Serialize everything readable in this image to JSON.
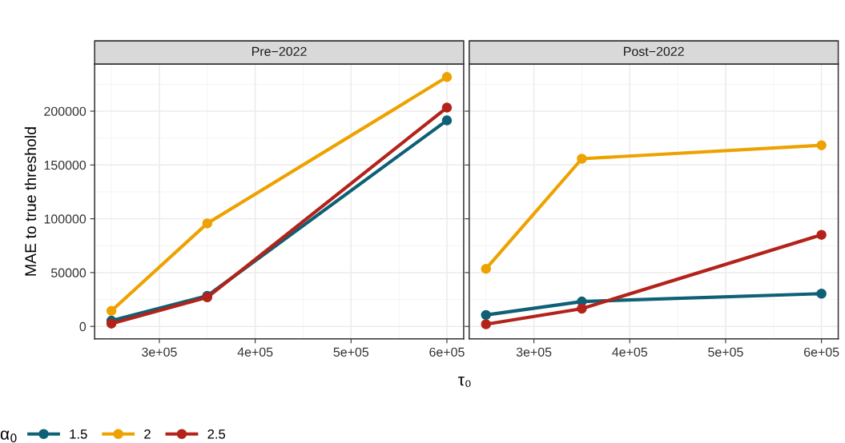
{
  "chart_data": [
    {
      "type": "line",
      "title": "Pre−2022",
      "xlabel": "τ₀",
      "ylabel": "MAE to true threshold",
      "legend_title": "α$_{0}$",
      "legend": "bottom",
      "marker": "circle",
      "line_style": "solid",
      "grid": true,
      "x": [
        250000,
        350000,
        600000
      ],
      "xlim": [
        232500,
        617500
      ],
      "xticks": [
        {
          "value": 300000,
          "label": "3e+05"
        },
        {
          "value": 400000,
          "label": "4e+05"
        },
        {
          "value": 500000,
          "label": "5e+05"
        },
        {
          "value": 600000,
          "label": "6e+05"
        }
      ],
      "ylim": [
        -11600,
        243600
      ],
      "yticks": [
        0,
        50000,
        100000,
        150000,
        200000
      ],
      "series": [
        {
          "name": "1.5",
          "color": "#0e6075",
          "values": [
            5300,
            28400,
            191400
          ]
        },
        {
          "name": "2",
          "color": "#eea200",
          "values": [
            14500,
            95700,
            231700
          ]
        },
        {
          "name": "2.5",
          "color": "#b3231a",
          "values": [
            2600,
            27000,
            203300
          ]
        }
      ]
    },
    {
      "type": "line",
      "title": "Post−2022",
      "marker": "circle",
      "line_style": "solid",
      "grid": true,
      "tick_labels": "x",
      "x": [
        250000,
        350000,
        600000
      ],
      "xlim": [
        232500,
        617500
      ],
      "xticks": [
        {
          "value": 300000,
          "label": "3e+05"
        },
        {
          "value": 400000,
          "label": "4e+05"
        },
        {
          "value": 500000,
          "label": "5e+05"
        },
        {
          "value": 600000,
          "label": "6e+05"
        }
      ],
      "ylim": [
        -11600,
        243600
      ],
      "yticks": [
        0,
        50000,
        100000,
        150000,
        200000
      ],
      "series": [
        {
          "name": "1.5",
          "color": "#0e6075",
          "values": [
            10600,
            23100,
            30400
          ]
        },
        {
          "name": "2",
          "color": "#eea200",
          "values": [
            53500,
            155800,
            168300
          ]
        },
        {
          "name": "2.5",
          "color": "#b3231a",
          "values": [
            2000,
            16500,
            85100
          ]
        }
      ]
    }
  ]
}
